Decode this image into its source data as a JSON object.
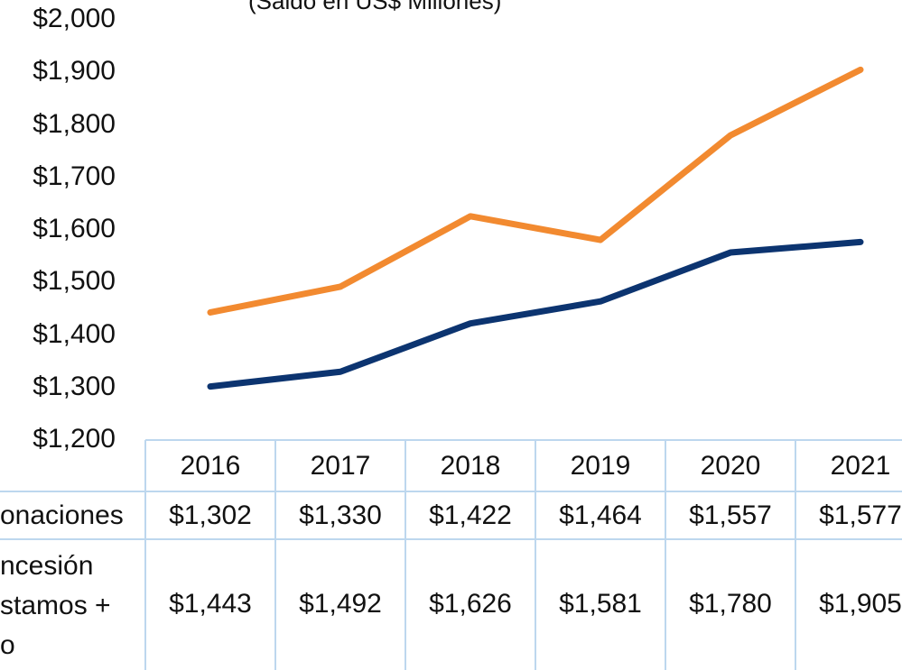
{
  "chart_data": {
    "type": "line",
    "subtitle": "(Saldo en US$ Millones)",
    "categories": [
      "2016",
      "2017",
      "2018",
      "2019",
      "2020",
      "2021"
    ],
    "series": [
      {
        "name": "onaciones",
        "color": "#0c3470",
        "values": [
          1302,
          1330,
          1422,
          1464,
          1557,
          1577
        ],
        "value_labels": [
          "$1,302",
          "$1,330",
          "$1,422",
          "$1,464",
          "$1,557",
          "$1,577"
        ]
      },
      {
        "name": "ncesión\nstamos +\no",
        "color": "#f28a30",
        "values": [
          1443,
          1492,
          1626,
          1581,
          1780,
          1905
        ],
        "value_labels": [
          "$1,443",
          "$1,492",
          "$1,626",
          "$1,581",
          "$1,780",
          "$1,905"
        ]
      }
    ],
    "ylim": [
      1200,
      2000
    ],
    "yticks": [
      {
        "value": 1200,
        "label": "$1,200"
      },
      {
        "value": 1300,
        "label": "$1,300"
      },
      {
        "value": 1400,
        "label": "$1,400"
      },
      {
        "value": 1500,
        "label": "$1,500"
      },
      {
        "value": 1600,
        "label": "$1,600"
      },
      {
        "value": 1700,
        "label": "$1,700"
      },
      {
        "value": 1800,
        "label": "$1,800"
      },
      {
        "value": 1900,
        "label": "$1,900"
      },
      {
        "value": 2000,
        "label": "$2,000"
      }
    ],
    "grid": false
  }
}
